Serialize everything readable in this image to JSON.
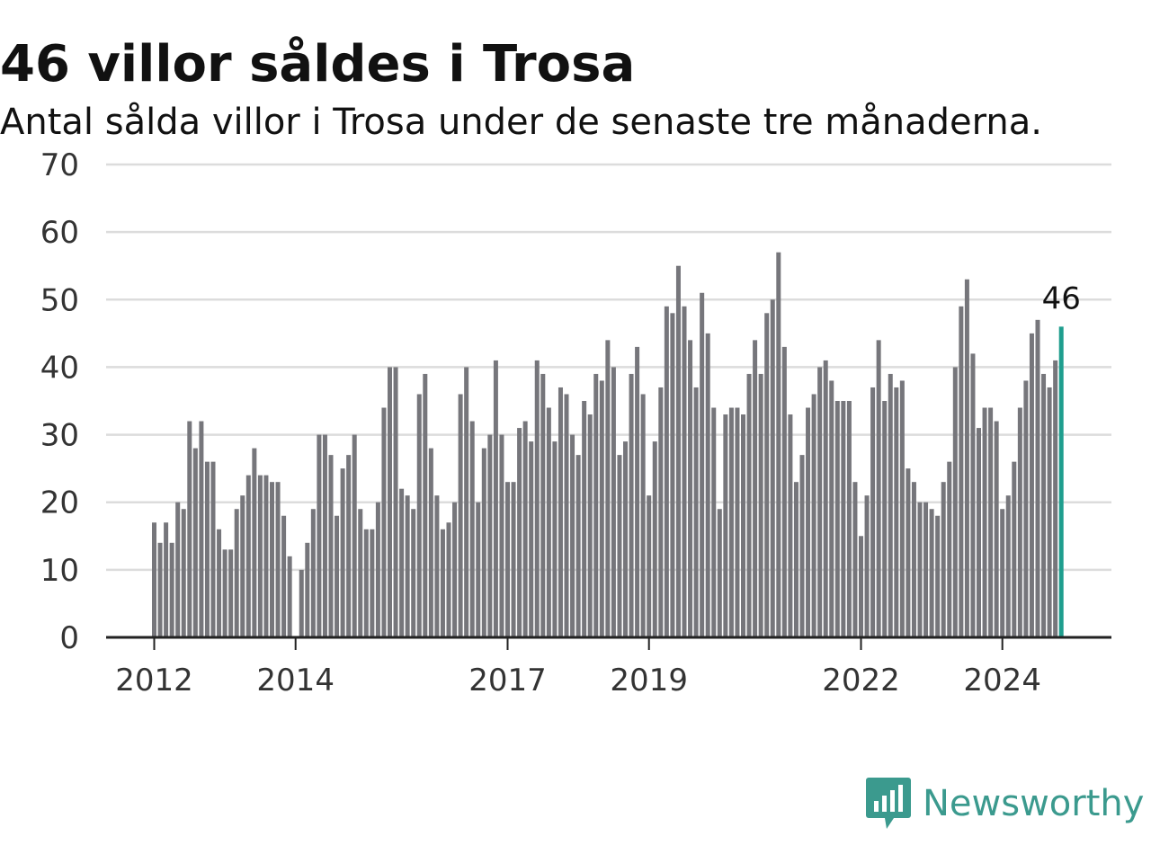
{
  "header": {
    "title": "46 villor såldes i Trosa",
    "subtitle": "Antal sålda villor i Trosa under de senaste tre månaderna."
  },
  "brand": {
    "name": "Newsworthy",
    "icon": "newsworthy-logo-icon",
    "color": "#3b9a8e"
  },
  "colors": {
    "bar": "#76767b",
    "highlight": "#1f9e8e",
    "grid": "#dcdcdc",
    "axis": "#222222"
  },
  "chart_data": {
    "type": "bar",
    "title": "",
    "xlabel": "",
    "ylabel": "",
    "ylim": [
      0,
      70
    ],
    "yticks": [
      0,
      10,
      20,
      30,
      40,
      50,
      60,
      70
    ],
    "grid": true,
    "x_start": "2012-01",
    "xticks": [
      {
        "label": "2012",
        "date": "2012-01"
      },
      {
        "label": "2014",
        "date": "2014-01"
      },
      {
        "label": "2017",
        "date": "2017-01"
      },
      {
        "label": "2019",
        "date": "2019-01"
      },
      {
        "label": "2022",
        "date": "2022-01"
      },
      {
        "label": "2024",
        "date": "2024-01"
      }
    ],
    "values": [
      17,
      14,
      17,
      14,
      20,
      19,
      32,
      28,
      32,
      26,
      26,
      16,
      13,
      13,
      19,
      21,
      24,
      28,
      24,
      24,
      23,
      23,
      18,
      12,
      0,
      10,
      14,
      19,
      30,
      30,
      27,
      18,
      25,
      27,
      30,
      19,
      16,
      16,
      20,
      34,
      40,
      40,
      22,
      21,
      19,
      36,
      39,
      28,
      21,
      16,
      17,
      20,
      36,
      40,
      32,
      20,
      28,
      30,
      41,
      30,
      23,
      23,
      31,
      32,
      29,
      41,
      39,
      34,
      29,
      37,
      36,
      30,
      27,
      35,
      33,
      39,
      38,
      44,
      40,
      27,
      29,
      39,
      43,
      36,
      21,
      29,
      37,
      49,
      48,
      55,
      49,
      44,
      37,
      51,
      45,
      34,
      19,
      33,
      34,
      34,
      33,
      39,
      44,
      39,
      48,
      50,
      57,
      43,
      33,
      23,
      27,
      34,
      36,
      40,
      41,
      38,
      35,
      35,
      35,
      23,
      15,
      21,
      37,
      44,
      35,
      39,
      37,
      38,
      25,
      23,
      20,
      20,
      19,
      18,
      23,
      26,
      40,
      49,
      53,
      42,
      31,
      34,
      34,
      32,
      19,
      21,
      26,
      34,
      38,
      45,
      47,
      39,
      37,
      41,
      46
    ],
    "highlight": {
      "index": 154,
      "value": 46,
      "label": "46"
    }
  }
}
